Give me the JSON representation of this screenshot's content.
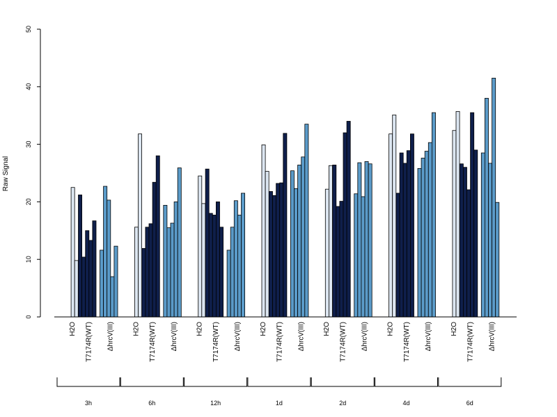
{
  "chart_data": {
    "type": "bar",
    "ylabel": "Raw Signal",
    "ylim": [
      0,
      50
    ],
    "yticks": [
      0,
      10,
      20,
      30,
      40,
      50
    ],
    "treatment_labels": [
      "H2O",
      "T7174R(WT)",
      "ΔhrcV(III)"
    ],
    "colors": {
      "H2O": "#dce6f1",
      "T7174R(WT)": "#0f1f4b",
      "ΔhrcV(III)": "#5b9bc9"
    },
    "groups": [
      {
        "time": "3h",
        "bars": [
          {
            "treatment": "H2O",
            "values": [
              0,
              22.5,
              9.8
            ]
          },
          {
            "treatment": "T7174R(WT)",
            "values": [
              21.2,
              10.4,
              15.0,
              13.3,
              16.7
            ]
          },
          {
            "treatment": "ΔhrcV(III)",
            "values": [
              11.6,
              22.7,
              20.3,
              7.0,
              12.3
            ]
          }
        ]
      },
      {
        "time": "6h",
        "bars": [
          {
            "treatment": "H2O",
            "values": [
              0,
              15.6,
              31.8
            ]
          },
          {
            "treatment": "T7174R(WT)",
            "values": [
              11.9,
              15.6,
              16.2,
              23.4,
              28.0
            ]
          },
          {
            "treatment": "ΔhrcV(III)",
            "values": [
              19.4,
              15.5,
              16.3,
              20.0,
              25.9
            ]
          }
        ]
      },
      {
        "time": "12h",
        "bars": [
          {
            "treatment": "H2O",
            "values": [
              0,
              24.5,
              19.7
            ]
          },
          {
            "treatment": "T7174R(WT)",
            "values": [
              25.7,
              18.0,
              17.7,
              20.0,
              15.6
            ]
          },
          {
            "treatment": "ΔhrcV(III)",
            "values": [
              11.6,
              15.6,
              20.2,
              17.7,
              21.5
            ]
          }
        ]
      },
      {
        "time": "1d",
        "bars": [
          {
            "treatment": "H2O",
            "values": [
              0,
              29.9,
              25.3
            ]
          },
          {
            "treatment": "T7174R(WT)",
            "values": [
              21.8,
              21.1,
              23.2,
              23.3,
              31.9
            ]
          },
          {
            "treatment": "ΔhrcV(III)",
            "values": [
              25.4,
              22.3,
              26.4,
              27.8,
              33.5
            ]
          }
        ]
      },
      {
        "time": "2d",
        "bars": [
          {
            "treatment": "H2O",
            "values": [
              0,
              22.2,
              26.3
            ]
          },
          {
            "treatment": "T7174R(WT)",
            "values": [
              26.4,
              19.2,
              20.1,
              32.0,
              34.0
            ]
          },
          {
            "treatment": "ΔhrcV(III)",
            "values": [
              21.4,
              26.8,
              20.9,
              27.0,
              26.6
            ]
          }
        ]
      },
      {
        "time": "4d",
        "bars": [
          {
            "treatment": "H2O",
            "values": [
              0,
              31.8,
              35.1
            ]
          },
          {
            "treatment": "T7174R(WT)",
            "values": [
              21.5,
              28.5,
              26.7,
              28.9,
              31.8
            ]
          },
          {
            "treatment": "ΔhrcV(III)",
            "values": [
              25.8,
              27.6,
              28.8,
              30.3,
              35.5
            ]
          }
        ]
      },
      {
        "time": "6d",
        "bars": [
          {
            "treatment": "H2O",
            "values": [
              0,
              32.4,
              35.7
            ]
          },
          {
            "treatment": "T7174R(WT)",
            "values": [
              26.6,
              26.0,
              22.1,
              35.5,
              29.0
            ]
          },
          {
            "treatment": "ΔhrcV(III)",
            "values": [
              28.5,
              38.0,
              26.7,
              41.5,
              19.9
            ]
          }
        ]
      }
    ]
  }
}
